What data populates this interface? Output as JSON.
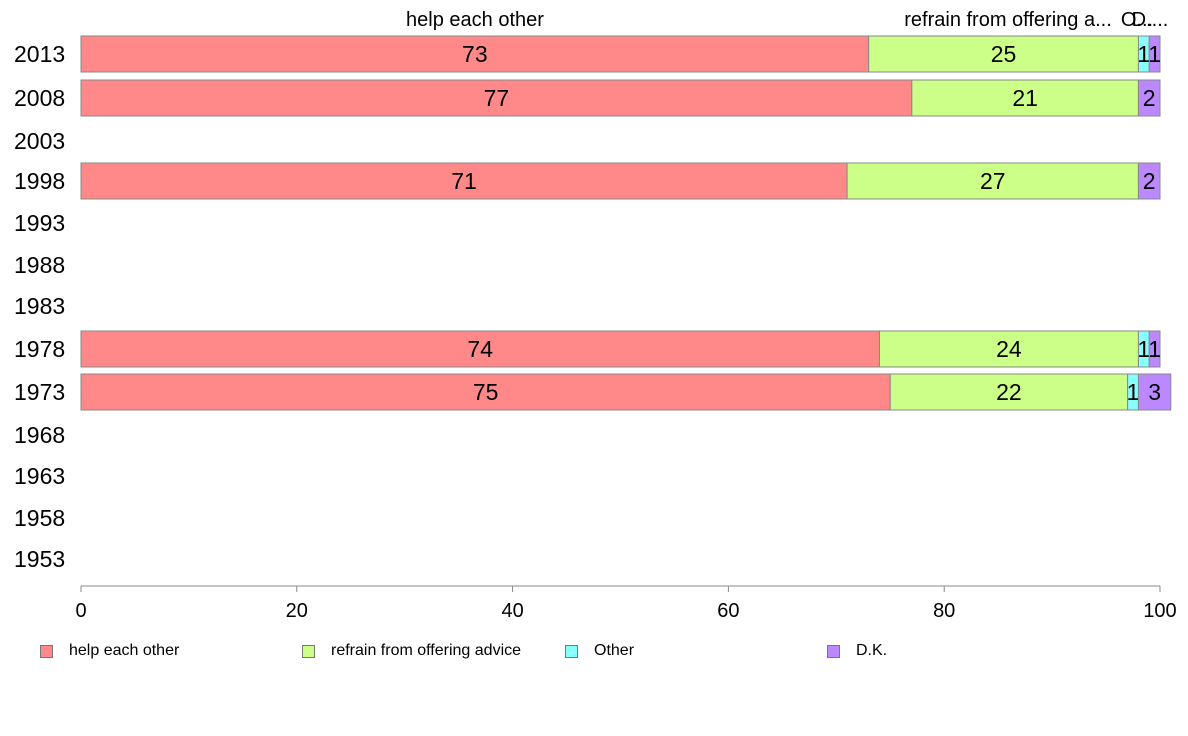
{
  "chart_data": {
    "type": "bar",
    "orientation": "horizontal",
    "stacked": true,
    "categories": [
      "2013",
      "2008",
      "2003",
      "1998",
      "1993",
      "1988",
      "1983",
      "1978",
      "1973",
      "1968",
      "1963",
      "1958",
      "1953"
    ],
    "series": [
      {
        "name": "help each other",
        "color": "#ff8888",
        "values": [
          73,
          77,
          null,
          71,
          null,
          null,
          null,
          74,
          75,
          null,
          null,
          null,
          null
        ]
      },
      {
        "name": "refrain from offering advice",
        "color": "#ccff88",
        "values": [
          25,
          21,
          null,
          27,
          null,
          null,
          null,
          24,
          22,
          null,
          null,
          null,
          null
        ]
      },
      {
        "name": "Other",
        "color": "#88ffff",
        "values": [
          1,
          0,
          null,
          0,
          null,
          null,
          null,
          1,
          1,
          null,
          null,
          null,
          null
        ]
      },
      {
        "name": "D.K.",
        "color": "#bb88ff",
        "values": [
          1,
          2,
          null,
          2,
          null,
          null,
          null,
          1,
          3,
          null,
          null,
          null,
          null
        ]
      }
    ],
    "column_headers": [
      "help each other",
      "refrain from offering a...",
      "O...",
      "D...."
    ],
    "xlim": [
      0,
      100
    ],
    "xticks": [
      0,
      20,
      40,
      60,
      80,
      100
    ],
    "legend_position": "bottom",
    "grid": false
  }
}
